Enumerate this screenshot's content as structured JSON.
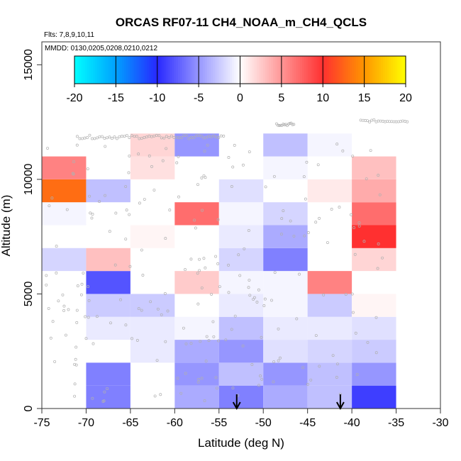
{
  "chart_data": {
    "type": "heatmap",
    "title": "ORCAS RF07-11 CH4_NOAA_m_CH4_QCLS",
    "flights_note": "Flts: 7,8,9,10,11",
    "dates_note": "MMDD: 0130,0205,0208,0210,0212",
    "xlabel": "Latitude (deg N)",
    "ylabel": "Altitude (m)",
    "xlim": [
      -75,
      -30
    ],
    "ylim": [
      0,
      16000
    ],
    "xticks": [
      "-75",
      "-70",
      "-65",
      "-60",
      "-55",
      "-50",
      "-45",
      "-40",
      "-35",
      "-30"
    ],
    "yticks": [
      "0",
      "5000",
      "10000",
      "15000"
    ],
    "colorbar": {
      "range": [
        -20,
        20
      ],
      "ticks": [
        "-20",
        "-15",
        "-10",
        "-5",
        "0",
        "5",
        "10",
        "15",
        "20"
      ]
    },
    "cell_width_deg": 5,
    "cell_height_m": 1000,
    "cells": [
      {
        "lat": -75,
        "alt": 0,
        "value": 0
      },
      {
        "lat": -75,
        "alt": 1000,
        "value": 0
      },
      {
        "lat": -75,
        "alt": 6000,
        "value": -2
      },
      {
        "lat": -75,
        "alt": 8000,
        "value": -0.5
      },
      {
        "lat": -75,
        "alt": 9000,
        "value": 13
      },
      {
        "lat": -75,
        "alt": 10000,
        "value": 6
      },
      {
        "lat": -70,
        "alt": 0,
        "value": -6
      },
      {
        "lat": -70,
        "alt": 1000,
        "value": -6
      },
      {
        "lat": -70,
        "alt": 3000,
        "value": -1
      },
      {
        "lat": -70,
        "alt": 4000,
        "value": -2.5
      },
      {
        "lat": -70,
        "alt": 5000,
        "value": -8
      },
      {
        "lat": -70,
        "alt": 6000,
        "value": 3
      },
      {
        "lat": -70,
        "alt": 9000,
        "value": -3
      },
      {
        "lat": -65,
        "alt": 2000,
        "value": -1
      },
      {
        "lat": -65,
        "alt": 3000,
        "value": -1
      },
      {
        "lat": -65,
        "alt": 4000,
        "value": -2.5
      },
      {
        "lat": -65,
        "alt": 7000,
        "value": 0.5
      },
      {
        "lat": -65,
        "alt": 10000,
        "value": 1.5
      },
      {
        "lat": -65,
        "alt": 11000,
        "value": 2
      },
      {
        "lat": -60,
        "alt": 0,
        "value": -4
      },
      {
        "lat": -60,
        "alt": 1000,
        "value": -5
      },
      {
        "lat": -60,
        "alt": 2000,
        "value": -4
      },
      {
        "lat": -60,
        "alt": 3000,
        "value": -0.5
      },
      {
        "lat": -60,
        "alt": 5000,
        "value": 2.5
      },
      {
        "lat": -60,
        "alt": 8000,
        "value": 7
      },
      {
        "lat": -60,
        "alt": 11000,
        "value": -5
      },
      {
        "lat": -55,
        "alt": 0,
        "value": -6
      },
      {
        "lat": -55,
        "alt": 1000,
        "value": -3
      },
      {
        "lat": -55,
        "alt": 2000,
        "value": -5
      },
      {
        "lat": -55,
        "alt": 3000,
        "value": -3
      },
      {
        "lat": -55,
        "alt": 4000,
        "value": -1
      },
      {
        "lat": -55,
        "alt": 5000,
        "value": -0.5
      },
      {
        "lat": -55,
        "alt": 6000,
        "value": -2
      },
      {
        "lat": -55,
        "alt": 7000,
        "value": -1
      },
      {
        "lat": -55,
        "alt": 8000,
        "value": -0.5
      },
      {
        "lat": -55,
        "alt": 9000,
        "value": -1.5
      },
      {
        "lat": -50,
        "alt": 0,
        "value": -4
      },
      {
        "lat": -50,
        "alt": 1000,
        "value": -5
      },
      {
        "lat": -50,
        "alt": 2000,
        "value": -1.5
      },
      {
        "lat": -50,
        "alt": 3000,
        "value": -1
      },
      {
        "lat": -50,
        "alt": 4000,
        "value": -0.5
      },
      {
        "lat": -50,
        "alt": 5000,
        "value": -0.5
      },
      {
        "lat": -50,
        "alt": 6000,
        "value": -6
      },
      {
        "lat": -50,
        "alt": 7000,
        "value": -4
      },
      {
        "lat": -50,
        "alt": 8000,
        "value": -2
      },
      {
        "lat": -50,
        "alt": 10000,
        "value": -0.5
      },
      {
        "lat": -50,
        "alt": 11000,
        "value": -3
      },
      {
        "lat": -45,
        "alt": 0,
        "value": -3
      },
      {
        "lat": -45,
        "alt": 1000,
        "value": -3
      },
      {
        "lat": -45,
        "alt": 2000,
        "value": -2
      },
      {
        "lat": -45,
        "alt": 3000,
        "value": -1
      },
      {
        "lat": -45,
        "alt": 4000,
        "value": -2.5
      },
      {
        "lat": -45,
        "alt": 5000,
        "value": 6
      },
      {
        "lat": -45,
        "alt": 9000,
        "value": 1
      },
      {
        "lat": -45,
        "alt": 11000,
        "value": -0.5
      },
      {
        "lat": -40,
        "alt": 0,
        "value": -9
      },
      {
        "lat": -40,
        "alt": 1000,
        "value": -5
      },
      {
        "lat": -40,
        "alt": 2000,
        "value": -2.5
      },
      {
        "lat": -40,
        "alt": 3000,
        "value": -1.5
      },
      {
        "lat": -40,
        "alt": 4000,
        "value": 0.5
      },
      {
        "lat": -40,
        "alt": 6000,
        "value": 2
      },
      {
        "lat": -40,
        "alt": 7000,
        "value": 10
      },
      {
        "lat": -40,
        "alt": 8000,
        "value": 7
      },
      {
        "lat": -40,
        "alt": 9000,
        "value": 4
      },
      {
        "lat": -40,
        "alt": 10000,
        "value": 3
      }
    ],
    "arrows": [
      {
        "lat": -53,
        "label": "down-arrow"
      },
      {
        "lat": -41.3,
        "label": "down-arrow"
      }
    ]
  }
}
